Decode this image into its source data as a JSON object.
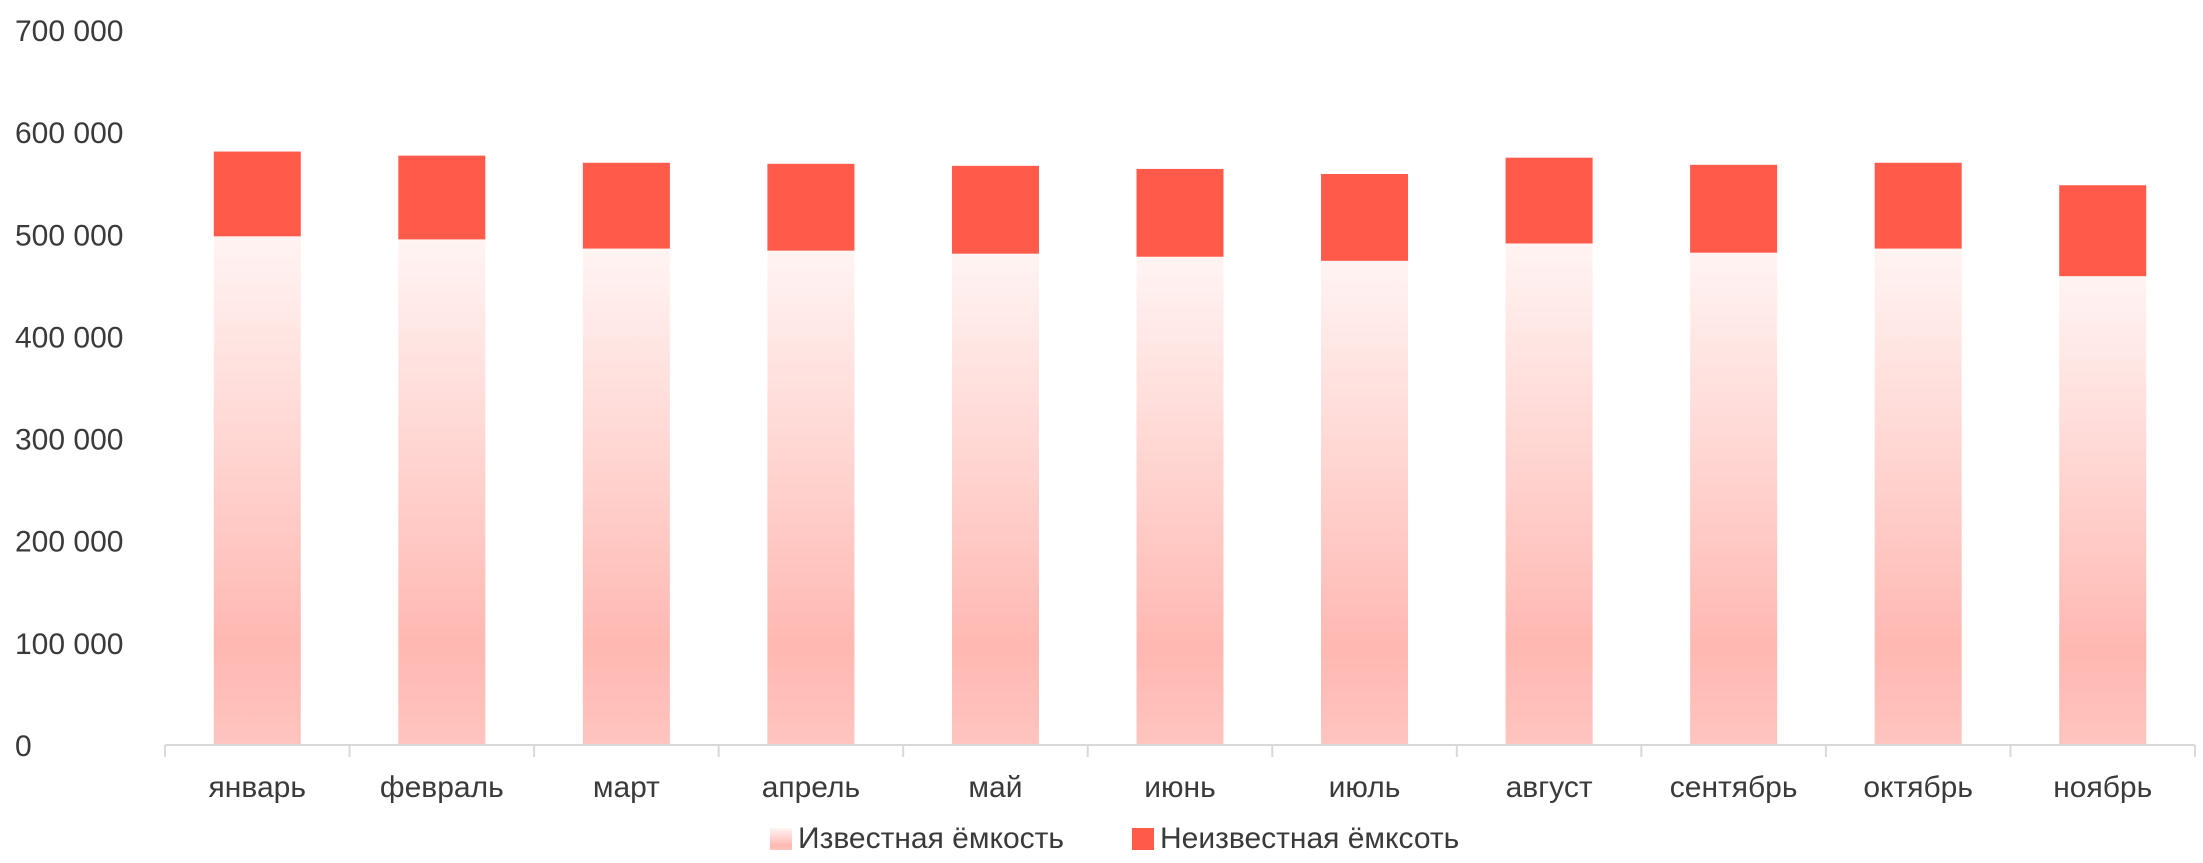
{
  "chart_data": {
    "type": "bar",
    "stacked": true,
    "categories": [
      "январь",
      "февраль",
      "март",
      "апрель",
      "май",
      "июнь",
      "июль",
      "август",
      "сентябрь",
      "октябрь",
      "ноябрь"
    ],
    "series": [
      {
        "name": "Известная ёмкость",
        "color": "#ffb3ad",
        "fill": "vertical gradient, light pink to near white",
        "values": [
          498000,
          495000,
          486000,
          484000,
          481000,
          478000,
          474000,
          491000,
          482000,
          486000,
          459000
        ]
      },
      {
        "name": "Неизвестная ёмксоть",
        "color": "#ff5a4a",
        "values": [
          83000,
          82000,
          84000,
          85000,
          86000,
          86000,
          85000,
          84000,
          86000,
          84000,
          89000
        ]
      }
    ],
    "ylim": [
      0,
      700000
    ],
    "yticks": [
      0,
      100000,
      200000,
      300000,
      400000,
      500000,
      600000,
      700000
    ],
    "ytick_labels": [
      "0",
      "100 000",
      "200 000",
      "300 000",
      "400 000",
      "500 000",
      "600 000",
      "700 000"
    ],
    "grid": false,
    "legend_position": "bottom-center"
  }
}
